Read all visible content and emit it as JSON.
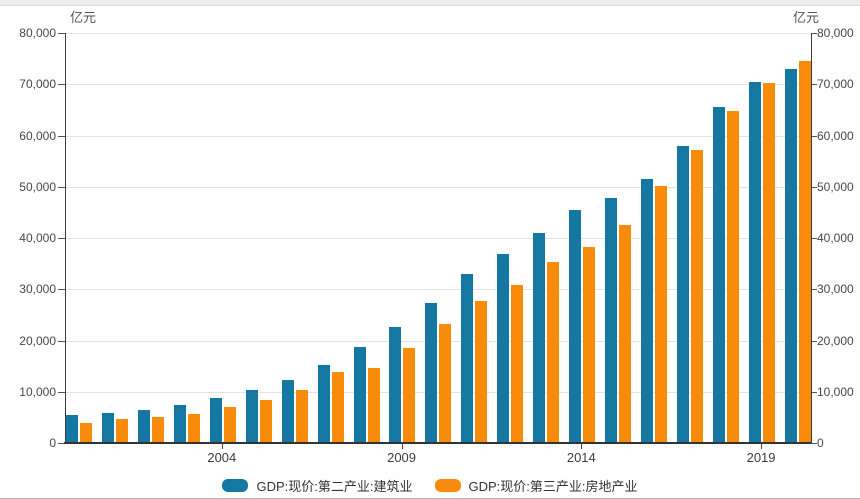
{
  "axes": {
    "unit_left": "亿元",
    "unit_right": "亿元"
  },
  "chart_data": {
    "type": "bar",
    "title": "",
    "unit": "亿元",
    "categories": [
      2000,
      2001,
      2002,
      2003,
      2004,
      2005,
      2006,
      2007,
      2008,
      2009,
      2010,
      2011,
      2012,
      2013,
      2014,
      2015,
      2016,
      2017,
      2018,
      2019,
      2020
    ],
    "series": [
      {
        "name": "GDP:现价:第二产业:建筑业",
        "key": "construction",
        "color": "#1578a2",
        "values": [
          5500,
          5900,
          6500,
          7500,
          8700,
          10400,
          12400,
          15300,
          18700,
          22700,
          27300,
          32900,
          36900,
          40900,
          45400,
          47800,
          51600,
          58000,
          65600,
          70500,
          73000
        ]
      },
      {
        "name": "GDP:现价:第三产业:房地产业",
        "key": "real-estate",
        "color": "#f98b0b",
        "values": [
          4000,
          4600,
          5000,
          5700,
          7000,
          8400,
          10300,
          13800,
          14700,
          18600,
          23300,
          27700,
          30800,
          35300,
          38200,
          42500,
          50100,
          57100,
          64800,
          70300,
          74600
        ]
      }
    ],
    "ylim": [
      0,
      80000
    ],
    "y_tick_step": 10000,
    "y_tick_labels": [
      "0",
      "10,000",
      "20,000",
      "30,000",
      "40,000",
      "50,000",
      "60,000",
      "70,000",
      "80,000"
    ],
    "x_tick_years": [
      2004,
      2009,
      2014,
      2019
    ],
    "x_tick_labels": [
      "2004",
      "2009",
      "2014",
      "2019"
    ],
    "grid": true,
    "legend_position": "bottom",
    "dual_y_axis": true
  }
}
